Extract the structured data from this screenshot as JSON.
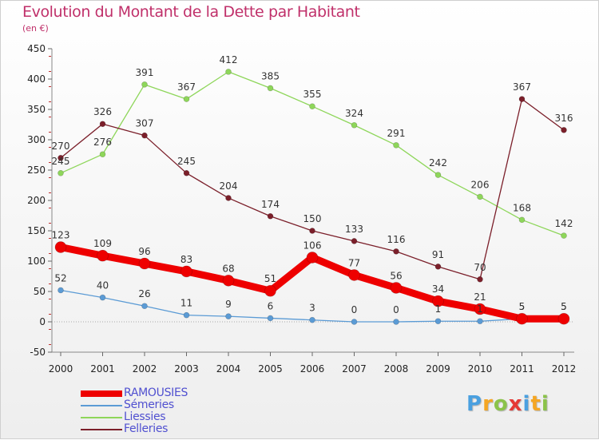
{
  "chart_data": {
    "type": "line",
    "title": "Evolution du Montant de la Dette par Habitant",
    "subtitle": "(en €)",
    "xlabel": "",
    "ylabel": "",
    "ylim": [
      -50,
      450
    ],
    "yticks": [
      -50,
      0,
      50,
      100,
      150,
      200,
      250,
      300,
      350,
      400,
      450
    ],
    "categories": [
      "2000",
      "2001",
      "2002",
      "2003",
      "2004",
      "2005",
      "2006",
      "2007",
      "2008",
      "2009",
      "2010",
      "2011",
      "2012"
    ],
    "grid": false,
    "legend_position": "bottom-left",
    "series": [
      {
        "name": "RAMOUSIES",
        "color": "#ee0000",
        "values": [
          123,
          109,
          96,
          83,
          68,
          51,
          106,
          77,
          56,
          34,
          21,
          5,
          5
        ]
      },
      {
        "name": "Sémeries",
        "color": "#5b9bd5",
        "values": [
          52,
          40,
          26,
          11,
          9,
          6,
          3,
          0,
          0,
          1,
          1,
          5,
          5
        ]
      },
      {
        "name": "Liessies",
        "color": "#8ed65a",
        "values": [
          245,
          276,
          391,
          367,
          412,
          385,
          355,
          324,
          291,
          242,
          206,
          168,
          142
        ]
      },
      {
        "name": "Felleries",
        "color": "#7b1f2a",
        "values": [
          270,
          326,
          307,
          245,
          204,
          174,
          150,
          133,
          116,
          91,
          70,
          367,
          316
        ]
      }
    ]
  },
  "logo": {
    "letters": [
      "P",
      "r",
      "o",
      "x",
      "i",
      "t",
      "i"
    ],
    "colors": [
      "#4aa0e0",
      "#f5a623",
      "#8bc34a",
      "#e53935",
      "#4aa0e0",
      "#f5a623",
      "#8bc34a"
    ]
  }
}
